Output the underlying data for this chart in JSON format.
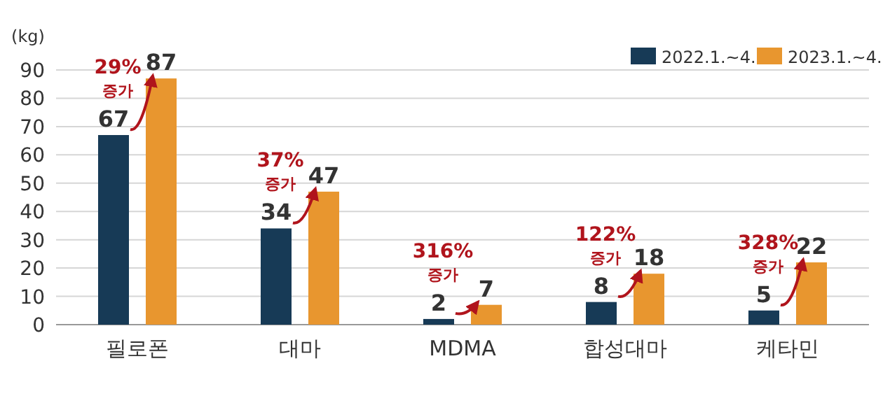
{
  "chart_data": {
    "type": "bar",
    "ylabel": "(kg)",
    "categories": [
      "필로폰",
      "대마",
      "MDMA",
      "합성대마",
      "케타민"
    ],
    "series": [
      {
        "name": "2022.1.~4.",
        "color": "#173a56",
        "values": [
          67,
          34,
          2,
          8,
          5
        ]
      },
      {
        "name": "2023.1.~4.",
        "color": "#e8962f",
        "values": [
          87,
          47,
          7,
          18,
          22
        ]
      }
    ],
    "ylim": [
      0,
      90
    ],
    "yticks": [
      0,
      10,
      20,
      30,
      40,
      50,
      60,
      70,
      80,
      90
    ],
    "grid": "y",
    "legend": "top right",
    "data_labels": true,
    "annotations": [
      "29%\n증가",
      "37%\n증가",
      "316%\n증가",
      "122%\n증가",
      "328%\n증가"
    ]
  }
}
